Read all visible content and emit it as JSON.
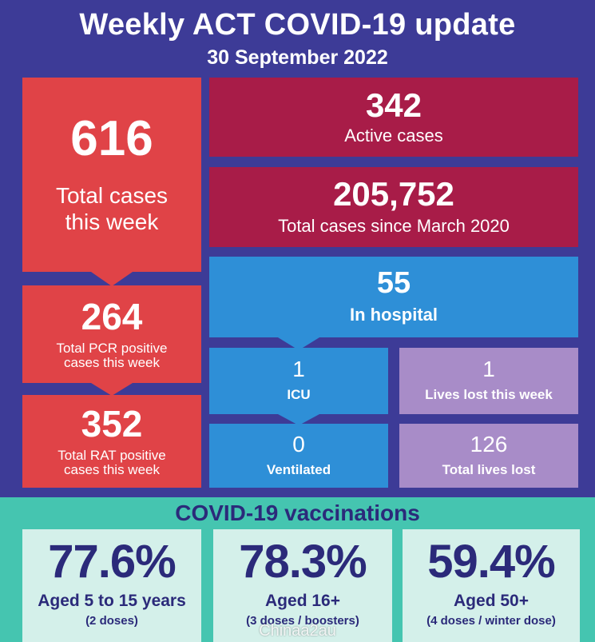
{
  "header": {
    "title": "Weekly ACT COVID-19 update",
    "date": "30 September 2022"
  },
  "cases": {
    "total_week": {
      "value": "616",
      "label_line1": "Total cases",
      "label_line2": "this week"
    },
    "pcr": {
      "value": "264",
      "label_line1": "Total PCR positive",
      "label_line2": "cases this week"
    },
    "rat": {
      "value": "352",
      "label_line1": "Total RAT positive",
      "label_line2": "cases this week"
    },
    "active": {
      "value": "342",
      "label": "Active cases"
    },
    "since_march": {
      "value": "205,752",
      "label": "Total cases since March 2020"
    }
  },
  "hospital": {
    "in_hospital": {
      "value": "55",
      "label": "In hospital"
    },
    "icu": {
      "value": "1",
      "label": "ICU"
    },
    "ventilated": {
      "value": "0",
      "label": "Ventilated"
    }
  },
  "deaths": {
    "week": {
      "value": "1",
      "label": "Lives lost this week"
    },
    "total": {
      "value": "126",
      "label": "Total lives lost"
    }
  },
  "vaccinations": {
    "title": "COVID-19 vaccinations",
    "cards": [
      {
        "percent": "77.6%",
        "age": "Aged 5 to 15 years",
        "doses": "(2 doses)"
      },
      {
        "percent": "78.3%",
        "age": "Aged 16+",
        "doses": "(3 doses / boosters)"
      },
      {
        "percent": "59.4%",
        "age": "Aged 50+",
        "doses": "(4 doses / winter dose)"
      }
    ]
  },
  "watermark": "Chinaa2au",
  "colors": {
    "background": "#3d3b97",
    "cases_red": "#e04347",
    "maroon": "#a81c48",
    "hospital_blue": "#2e8fd7",
    "deaths_lilac": "#a88cc8",
    "vaccination_teal": "#45c5b0",
    "vaccination_card": "#d4f0ea",
    "vaccination_text": "#2b2a7a"
  }
}
